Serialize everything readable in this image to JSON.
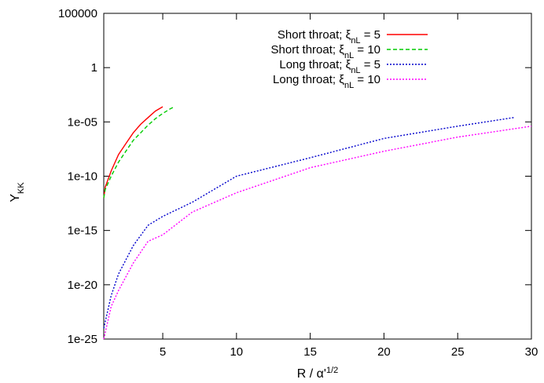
{
  "chart_data": {
    "type": "line",
    "title": "",
    "xlabel": "R / α'1/2",
    "xlabel_main": "R / α'",
    "xlabel_sup": "1/2",
    "ylabel": "YKK",
    "ylabel_main": "Y",
    "ylabel_sub": "KK",
    "xlim": [
      1,
      30
    ],
    "ylim": [
      1e-25,
      100000
    ],
    "yscale": "log",
    "x_ticks": [
      5,
      10,
      15,
      20,
      25,
      30
    ],
    "x_tick_labels": [
      "5",
      "10",
      "15",
      "20",
      "25",
      "30"
    ],
    "y_ticks": [
      1e-25,
      1e-20,
      1e-15,
      1e-10,
      1e-05,
      1,
      100000
    ],
    "y_tick_labels": [
      "1e-25",
      "1e-20",
      "1e-15",
      "1e-10",
      "1e-05",
      "1",
      "100000"
    ],
    "grid": false,
    "legend_position": "top-right",
    "series": [
      {
        "name": "Short throat; ξnL = 5",
        "label_prefix": "Short throat; ξ",
        "label_sub": "nL",
        "label_suffix": " = 5",
        "color": "#ff0000",
        "dash": "solid",
        "x": [
          1.0,
          1.1,
          1.5,
          2.0,
          2.5,
          3.0,
          3.5,
          4.0,
          4.5,
          5.0
        ],
        "y": [
          1e-12,
          1e-11,
          3e-10,
          1e-08,
          1e-07,
          1e-06,
          6e-06,
          2.5e-05,
          0.0001,
          0.00025
        ]
      },
      {
        "name": "Short throat; ξnL = 10",
        "label_prefix": "Short throat; ξ",
        "label_sub": "nL",
        "label_suffix": " = 10",
        "color": "#00cc00",
        "dash": "dashed",
        "x": [
          1.0,
          1.1,
          1.5,
          2.0,
          2.5,
          3.0,
          3.5,
          4.0,
          4.5,
          5.0,
          5.5,
          5.8
        ],
        "y": [
          1e-12,
          6e-12,
          1e-10,
          2e-09,
          2e-08,
          2e-07,
          1e-06,
          5e-06,
          2e-05,
          6e-05,
          0.00016,
          0.00025
        ]
      },
      {
        "name": "Long throat; ξnL = 5",
        "label_prefix": "Long throat; ξ",
        "label_sub": "nL",
        "label_suffix": " = 5",
        "color": "#0000cc",
        "dash": "dotted",
        "x": [
          1.0,
          1.5,
          2.0,
          3.0,
          4.0,
          5.0,
          7.0,
          10.0,
          15.0,
          20.0,
          25.0,
          28.8
        ],
        "y": [
          1e-24,
          1e-21,
          1e-19,
          4e-17,
          3e-15,
          2e-14,
          4e-13,
          1e-10,
          5e-09,
          3e-07,
          4e-06,
          2.5e-05
        ]
      },
      {
        "name": "Long throat; ξnL = 10",
        "label_prefix": "Long throat; ξ",
        "label_sub": "nL",
        "label_suffix": " = 10",
        "color": "#ff00ff",
        "dash": "dotted",
        "x": [
          1.0,
          1.5,
          2.0,
          3.0,
          4.0,
          5.0,
          7.0,
          10.0,
          15.0,
          20.0,
          25.0,
          30.0
        ],
        "y": [
          1e-25,
          1e-22,
          3e-21,
          1e-18,
          1e-16,
          4e-16,
          5e-14,
          3e-12,
          6e-10,
          2e-08,
          4e-07,
          4e-06
        ]
      }
    ]
  }
}
